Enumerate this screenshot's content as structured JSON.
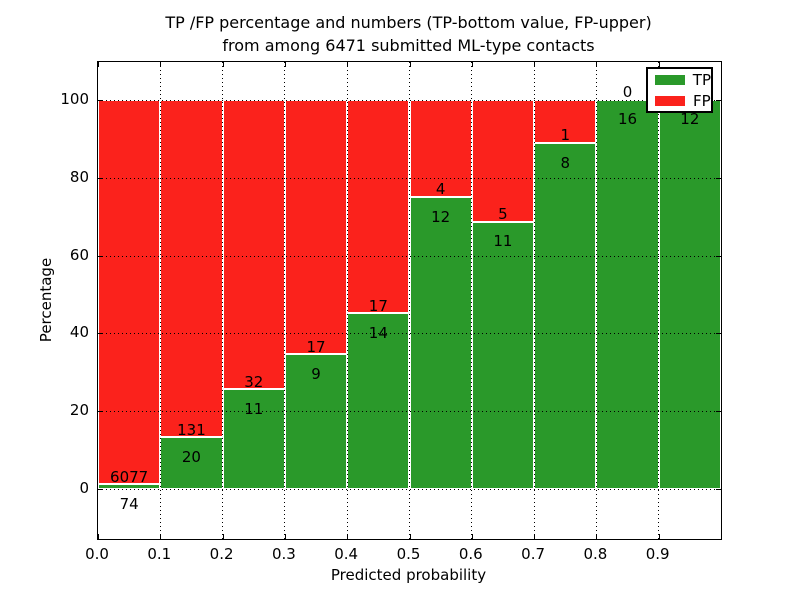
{
  "figure": {
    "title_lines": [
      "TP /FP percentage and numbers (TP-bottom value, FP-upper)",
      "from among 6471 submitted ML-type contacts"
    ]
  },
  "chart_data": {
    "type": "bar",
    "subtype": "stacked-percentage",
    "title": "TP /FP percentage and numbers (TP-bottom value, FP-upper) from among 6471 submitted ML-type contacts",
    "xlabel": "Predicted probability",
    "ylabel": "Percentage",
    "grid": "dotted",
    "xlim": [
      0.0,
      1.0
    ],
    "ylim": [
      -13,
      110
    ],
    "bin_width": 0.1,
    "categories": [
      "0.0-0.1",
      "0.1-0.2",
      "0.2-0.3",
      "0.3-0.4",
      "0.4-0.5",
      "0.5-0.6",
      "0.6-0.7",
      "0.7-0.8",
      "0.8-0.9",
      "0.9-1.0"
    ],
    "series": [
      {
        "name": "TP",
        "color": "#2a992a",
        "position": "bottom",
        "values": [
          74,
          20,
          11,
          9,
          14,
          12,
          11,
          8,
          16,
          12
        ]
      },
      {
        "name": "FP",
        "color": "#fb221c",
        "position": "upper",
        "values": [
          6077,
          131,
          32,
          17,
          17,
          4,
          5,
          1,
          0,
          0
        ]
      }
    ],
    "tp_percent": [
      1.2,
      13.2,
      25.6,
      34.6,
      45.2,
      75.0,
      68.8,
      88.9,
      100.0,
      100.0
    ],
    "xticks": [
      "0.0",
      "0.1",
      "0.2",
      "0.3",
      "0.4",
      "0.5",
      "0.6",
      "0.7",
      "0.8",
      "0.9"
    ],
    "yticks": [
      0,
      20,
      40,
      60,
      80,
      100
    ],
    "legend": {
      "position": "upper right",
      "items": [
        {
          "label": "TP",
          "color": "#2a992a"
        },
        {
          "label": "FP",
          "color": "#fb221c"
        }
      ]
    }
  }
}
